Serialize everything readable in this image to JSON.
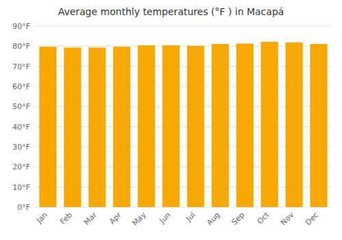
{
  "chart_data": {
    "type": "bar",
    "title": "Average monthly temperatures (°F ) in Macapá",
    "categories": [
      "Jan",
      "Feb",
      "Mar",
      "Apr",
      "May",
      "Jun",
      "Jul",
      "Aug",
      "Sep",
      "Oct",
      "Nov",
      "Dec"
    ],
    "values": [
      79.7,
      79.3,
      79.3,
      79.7,
      80.4,
      80.4,
      80.2,
      81.1,
      81.3,
      82.2,
      81.9,
      81.1
    ],
    "color": "#F5A800",
    "ylim": [
      0,
      90
    ],
    "yticks": [
      {
        "value": 0,
        "label": "0°F"
      },
      {
        "value": 10,
        "label": "10°F"
      },
      {
        "value": 20,
        "label": "20°F"
      },
      {
        "value": 30,
        "label": "30°F"
      },
      {
        "value": 40,
        "label": "40°F"
      },
      {
        "value": 50,
        "label": "50°F"
      },
      {
        "value": 60,
        "label": "60°F"
      },
      {
        "value": 70,
        "label": "70°F"
      },
      {
        "value": 80,
        "label": "80°F"
      },
      {
        "value": 90,
        "label": "90°F"
      }
    ],
    "grid": true
  }
}
